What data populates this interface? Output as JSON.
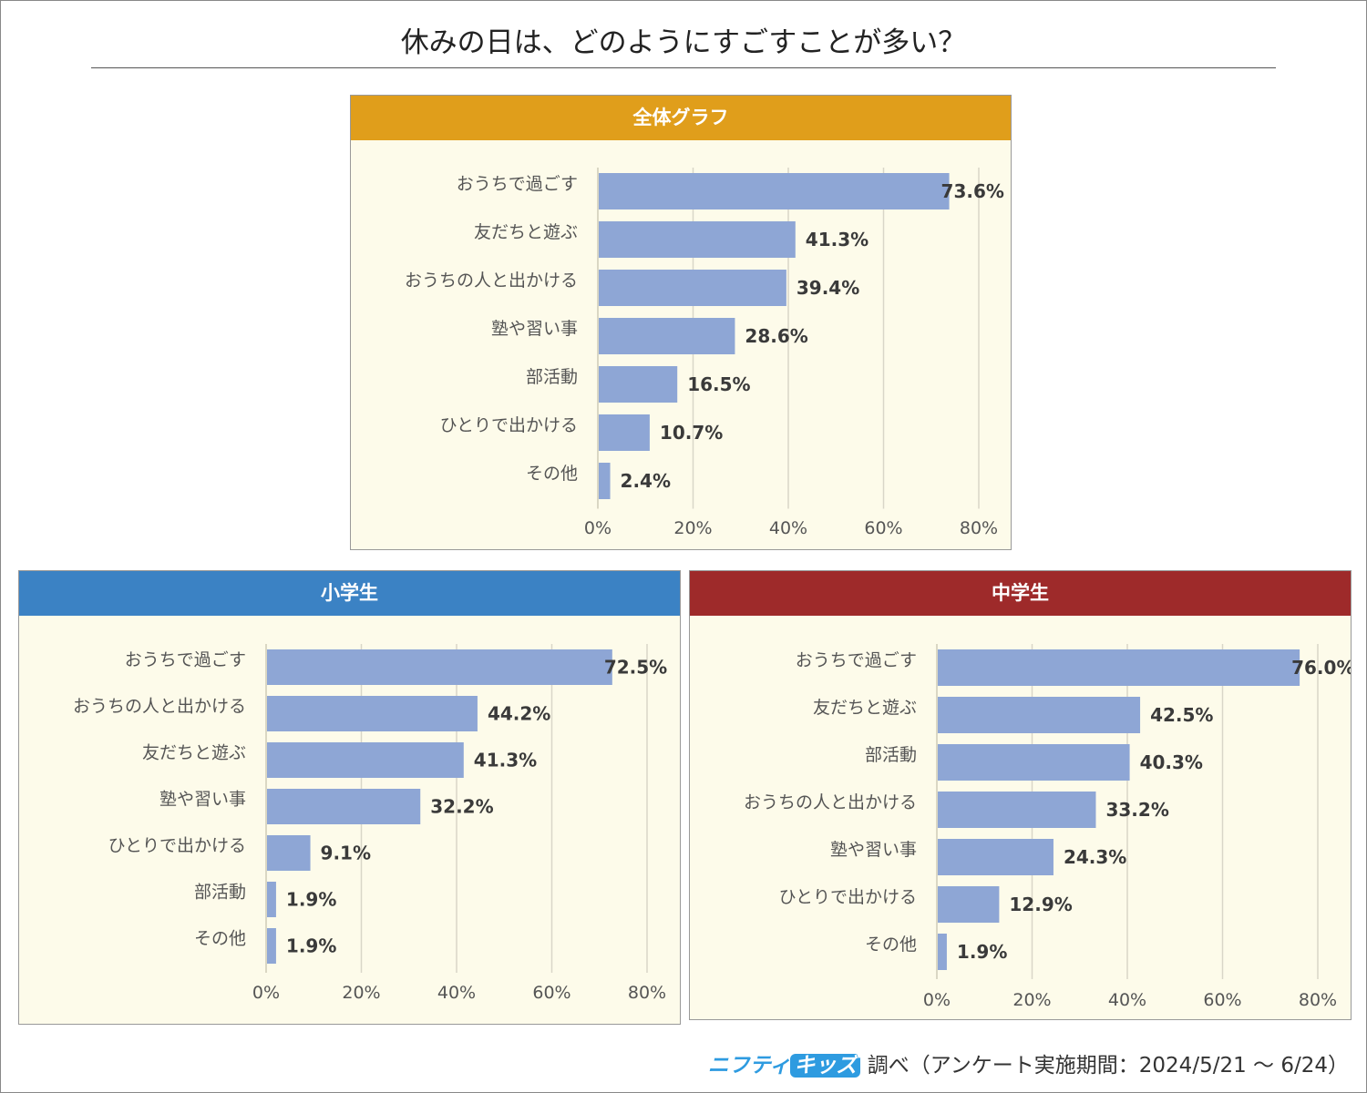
{
  "page_title": "休みの日は、どのようにすごすことが多い？",
  "footer": {
    "brand_a": "ニフティ",
    "brand_b": "キッズ",
    "text": "調べ（アンケート実施期間：2024/5/21 ～ 6/24）"
  },
  "colors": {
    "bar": "#8ea6d5",
    "overall_header": "#e09e1b",
    "elementary_header": "#3b82c4",
    "junior_header": "#9e2a2a",
    "panel_bg": "#fdfbea",
    "grid": "#d9d6c8"
  },
  "chart_data": [
    {
      "id": "overall",
      "title": "全体グラフ",
      "type": "bar",
      "orientation": "horizontal",
      "categories": [
        "おうちで過ごす",
        "友だちと遊ぶ",
        "おうちの人と出かける",
        "塾や習い事",
        "部活動",
        "ひとりで出かける",
        "その他"
      ],
      "values": [
        73.6,
        41.3,
        39.4,
        28.6,
        16.5,
        10.7,
        2.4
      ],
      "value_labels": [
        "73.6%",
        "41.3%",
        "39.4%",
        "28.6%",
        "16.5%",
        "10.7%",
        "2.4%"
      ],
      "xlim": [
        0,
        80
      ],
      "xticks": [
        "0%",
        "20%",
        "40%",
        "60%",
        "80%"
      ],
      "grid": true
    },
    {
      "id": "elementary",
      "title": "小学生",
      "type": "bar",
      "orientation": "horizontal",
      "categories": [
        "おうちで過ごす",
        "おうちの人と出かける",
        "友だちと遊ぶ",
        "塾や習い事",
        "ひとりで出かける",
        "部活動",
        "その他"
      ],
      "values": [
        72.5,
        44.2,
        41.3,
        32.2,
        9.1,
        1.9,
        1.9
      ],
      "value_labels": [
        "72.5%",
        "44.2%",
        "41.3%",
        "32.2%",
        "9.1%",
        "1.9%",
        "1.9%"
      ],
      "xlim": [
        0,
        80
      ],
      "xticks": [
        "0%",
        "20%",
        "40%",
        "60%",
        "80%"
      ],
      "grid": true
    },
    {
      "id": "junior",
      "title": "中学生",
      "type": "bar",
      "orientation": "horizontal",
      "categories": [
        "おうちで過ごす",
        "友だちと遊ぶ",
        "部活動",
        "おうちの人と出かける",
        "塾や習い事",
        "ひとりで出かける",
        "その他"
      ],
      "values": [
        76.0,
        42.5,
        40.3,
        33.2,
        24.3,
        12.9,
        1.9
      ],
      "value_labels": [
        "76.0%",
        "42.5%",
        "40.3%",
        "33.2%",
        "24.3%",
        "12.9%",
        "1.9%"
      ],
      "xlim": [
        0,
        80
      ],
      "xticks": [
        "0%",
        "20%",
        "40%",
        "60%",
        "80%"
      ],
      "grid": true
    }
  ]
}
